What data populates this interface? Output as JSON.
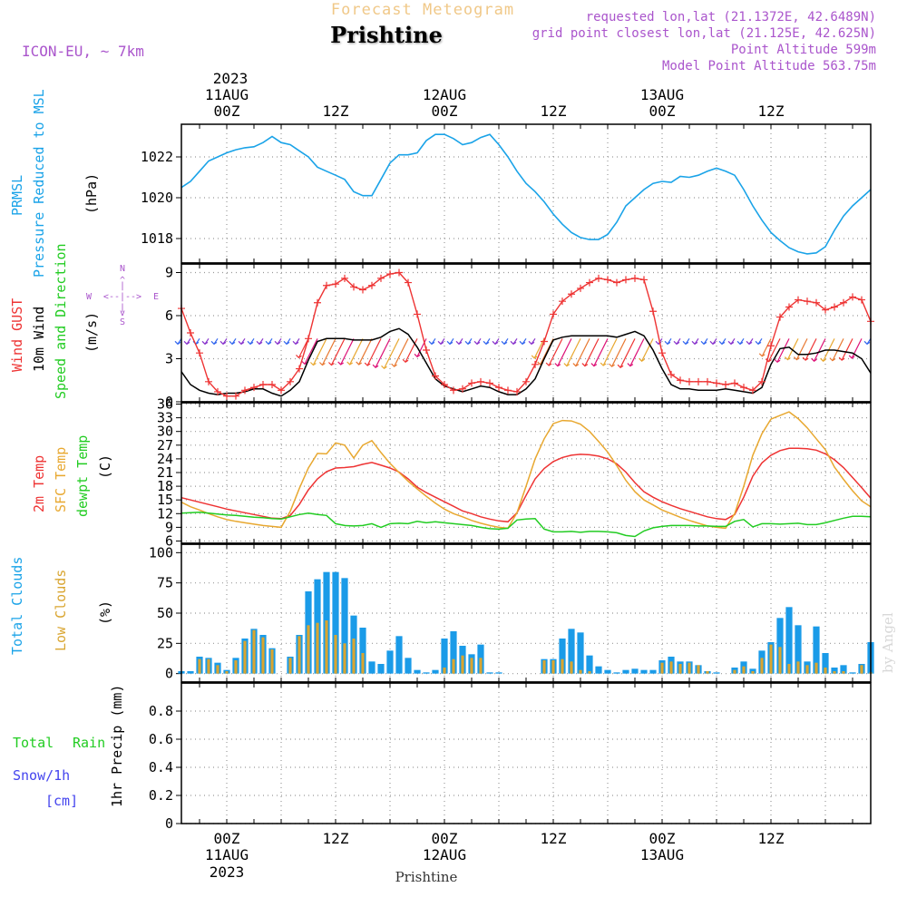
{
  "header": {
    "title": "Forecast Meteogram",
    "location": "Prishtine",
    "model": "ICON-EU, ~ 7km",
    "requested": "requested lon,lat (21.1372E, 42.6489N)",
    "grid_point": "grid point closest lon,lat (21.125E, 42.625N)",
    "point_altitude": "Point Altitude 599m",
    "model_altitude": "Model Point Altitude 563.75m",
    "watermark": "by Angel",
    "footer_location": "Prishtine"
  },
  "time_axis": {
    "top_year": "2023",
    "bottom_year": "2023",
    "tick_labels": [
      {
        "day": "11AUG",
        "time": "00Z",
        "hours": 0
      },
      {
        "day": "",
        "time": "12Z",
        "hours": 12
      },
      {
        "day": "12AUG",
        "time": "00Z",
        "hours": 24
      },
      {
        "day": "",
        "time": "12Z",
        "hours": 36
      },
      {
        "day": "13AUG",
        "time": "00Z",
        "hours": 48
      },
      {
        "day": "",
        "time": "12Z",
        "hours": 60
      }
    ],
    "hour_range": [
      -5,
      71
    ]
  },
  "panel_labels": {
    "pressure": {
      "line1": "PRMSL",
      "line2": "Pressure Reduced to MSL",
      "unit": "(hPa)"
    },
    "wind": {
      "gust": "Wind GUST",
      "wind10": "10m Wind",
      "dir": "Speed and Direction",
      "unit": "(m/s)",
      "compass_n": "N",
      "compass_s": "S",
      "compass_w": "W",
      "compass_e": "E"
    },
    "temp": {
      "t2m": "2m Temp",
      "sfc": "SFC Temp",
      "dew": "dewpt Temp",
      "unit": "(C)"
    },
    "clouds": {
      "total": "Total Clouds",
      "low": "Low Clouds",
      "unit": "(%)"
    },
    "precip": {
      "total": "Total",
      "rain": "Rain",
      "snow": "Snow/1h",
      "cm": "[cm]",
      "axis": "1hr Precip (mm)"
    }
  },
  "colors": {
    "pressure": "#1aa3e8",
    "gust": "#ee3333",
    "wind10": "#000000",
    "t2m": "#ee3333",
    "sfc": "#e8a830",
    "dew": "#22cc22",
    "total_clouds": "#1a9be8",
    "low_clouds": "#d9a530",
    "purple": "#aa55cc",
    "orange_title": "#f0c888",
    "precip_green": "#22cc22",
    "precip_blue": "#4444ee"
  },
  "chart_data": [
    {
      "type": "line",
      "name": "pressure",
      "ylabel": "(hPa)",
      "ylim": [
        1016.8,
        1023.6
      ],
      "yticks": [
        1018,
        1020,
        1022
      ],
      "x": [
        -5,
        -4,
        -3,
        -2,
        -1,
        0,
        1,
        2,
        3,
        4,
        5,
        6,
        7,
        8,
        9,
        10,
        11,
        12,
        13,
        14,
        15,
        16,
        17,
        18,
        19,
        20,
        21,
        22,
        23,
        24,
        25,
        26,
        27,
        28,
        29,
        30,
        31,
        32,
        33,
        34,
        35,
        36,
        37,
        38,
        39,
        40,
        41,
        42,
        43,
        44,
        45,
        46,
        47,
        48,
        49,
        50,
        51,
        52,
        53,
        54,
        55,
        56,
        57,
        58,
        59,
        60,
        61,
        62,
        63,
        64,
        65,
        66,
        67,
        68,
        69,
        70,
        71
      ],
      "series": [
        {
          "values": [
            1020.5,
            1020.8,
            1021.3,
            1021.8,
            1022.0,
            1022.2,
            1022.35,
            1022.45,
            1022.5,
            1022.7,
            1023.0,
            1022.7,
            1022.6,
            1022.3,
            1022.0,
            1021.5,
            1021.3,
            1021.1,
            1020.9,
            1020.3,
            1020.1,
            1020.1,
            1020.9,
            1021.7,
            1022.1,
            1022.1,
            1022.2,
            1022.8,
            1023.1,
            1023.1,
            1022.9,
            1022.6,
            1022.7,
            1022.95,
            1023.1,
            1022.6,
            1022.0,
            1021.3,
            1020.7,
            1020.3,
            1019.8,
            1019.2,
            1018.7,
            1018.3,
            1018.05,
            1017.95,
            1017.95,
            1018.2,
            1018.8,
            1019.6,
            1020.0,
            1020.4,
            1020.7,
            1020.8,
            1020.75,
            1021.05,
            1021.0,
            1021.1,
            1021.3,
            1021.45,
            1021.3,
            1021.1,
            1020.4,
            1019.6,
            1018.9,
            1018.3,
            1017.9,
            1017.55,
            1017.35,
            1017.25,
            1017.3,
            1017.6,
            1018.4,
            1019.1,
            1019.6,
            1020.0,
            1020.4
          ]
        }
      ]
    },
    {
      "type": "line",
      "name": "wind",
      "ylabel": "(m/s)",
      "ylim": [
        0,
        9.6
      ],
      "yticks": [
        0,
        3,
        6,
        9
      ],
      "x": [
        -5,
        -4,
        -3,
        -2,
        -1,
        0,
        1,
        2,
        3,
        4,
        5,
        6,
        7,
        8,
        9,
        10,
        11,
        12,
        13,
        14,
        15,
        16,
        17,
        18,
        19,
        20,
        21,
        22,
        23,
        24,
        25,
        26,
        27,
        28,
        29,
        30,
        31,
        32,
        33,
        34,
        35,
        36,
        37,
        38,
        39,
        40,
        41,
        42,
        43,
        44,
        45,
        46,
        47,
        48,
        49,
        50,
        51,
        52,
        53,
        54,
        55,
        56,
        57,
        58,
        59,
        60,
        61,
        62,
        63,
        64,
        65,
        66,
        67,
        68,
        69,
        70,
        71
      ],
      "series": [
        {
          "name": "Wind GUST",
          "values": [
            6.5,
            4.8,
            3.4,
            1.4,
            0.7,
            0.4,
            0.4,
            0.8,
            1.0,
            1.2,
            1.2,
            0.8,
            1.4,
            2.3,
            4.4,
            6.9,
            8.1,
            8.2,
            8.6,
            8.0,
            7.8,
            8.1,
            8.6,
            8.9,
            9.0,
            8.3,
            6.1,
            3.6,
            1.8,
            1.2,
            0.8,
            0.9,
            1.3,
            1.4,
            1.3,
            1.0,
            0.8,
            0.7,
            1.4,
            2.6,
            4.2,
            6.1,
            7.0,
            7.5,
            7.9,
            8.3,
            8.6,
            8.5,
            8.3,
            8.5,
            8.6,
            8.5,
            6.3,
            3.4,
            1.9,
            1.5,
            1.4,
            1.4,
            1.4,
            1.3,
            1.2,
            1.3,
            1.0,
            0.8,
            1.4,
            3.9,
            5.9,
            6.6,
            7.1,
            7.0,
            6.9,
            6.4,
            6.6,
            6.9,
            7.3,
            7.1,
            5.6
          ]
        },
        {
          "name": "10m Wind",
          "values": [
            2.1,
            1.2,
            0.8,
            0.6,
            0.5,
            0.6,
            0.6,
            0.7,
            0.9,
            0.9,
            0.6,
            0.4,
            0.8,
            1.4,
            2.9,
            4.2,
            4.4,
            4.4,
            4.4,
            4.3,
            4.3,
            4.3,
            4.5,
            4.9,
            5.1,
            4.7,
            3.8,
            2.7,
            1.6,
            1.1,
            0.9,
            0.7,
            0.9,
            1.1,
            1.0,
            0.7,
            0.5,
            0.5,
            0.9,
            1.6,
            3.0,
            4.3,
            4.5,
            4.6,
            4.6,
            4.6,
            4.6,
            4.6,
            4.5,
            4.7,
            4.9,
            4.6,
            3.6,
            2.3,
            1.2,
            0.9,
            0.9,
            0.8,
            0.8,
            0.8,
            0.9,
            0.8,
            0.7,
            0.6,
            1.0,
            2.6,
            3.7,
            3.8,
            3.3,
            3.3,
            3.4,
            3.6,
            3.6,
            3.5,
            3.4,
            3.0,
            2.0
          ]
        }
      ]
    },
    {
      "type": "line",
      "name": "temperature",
      "ylabel": "(C)",
      "ylim": [
        5.5,
        36.3
      ],
      "yticks": [
        6,
        9,
        12,
        15,
        18,
        21,
        24,
        27,
        30,
        33,
        36
      ],
      "x": [
        -5,
        -4,
        -3,
        -2,
        -1,
        0,
        1,
        2,
        3,
        4,
        5,
        6,
        7,
        8,
        9,
        10,
        11,
        12,
        13,
        14,
        15,
        16,
        17,
        18,
        19,
        20,
        21,
        22,
        23,
        24,
        25,
        26,
        27,
        28,
        29,
        30,
        31,
        32,
        33,
        34,
        35,
        36,
        37,
        38,
        39,
        40,
        41,
        42,
        43,
        44,
        45,
        46,
        47,
        48,
        49,
        50,
        51,
        52,
        53,
        54,
        55,
        56,
        57,
        58,
        59,
        60,
        61,
        62,
        63,
        64,
        65,
        66,
        67,
        68,
        69,
        70,
        71
      ],
      "series": [
        {
          "name": "2m Temp",
          "values": [
            15.5,
            15,
            14.5,
            14,
            13.5,
            13,
            12.6,
            12.2,
            11.8,
            11.4,
            11.0,
            10.9,
            11.6,
            14.0,
            17.2,
            19.6,
            21.2,
            22.0,
            22.1,
            22.3,
            22.8,
            23.2,
            22.6,
            22.0,
            21.1,
            19.6,
            17.8,
            16.6,
            15.6,
            14.6,
            13.6,
            12.6,
            12.0,
            11.3,
            10.8,
            10.4,
            10.2,
            12.2,
            16.0,
            19.6,
            21.9,
            23.4,
            24.3,
            24.8,
            25.0,
            24.9,
            24.6,
            24.0,
            22.9,
            21.1,
            18.8,
            16.8,
            15.6,
            14.6,
            13.8,
            13.1,
            12.5,
            11.9,
            11.3,
            10.9,
            10.7,
            11.8,
            15.6,
            20.2,
            23.1,
            24.8,
            25.8,
            26.3,
            26.3,
            26.2,
            25.9,
            25.1,
            23.8,
            22.1,
            19.9,
            17.7,
            15.4
          ]
        },
        {
          "name": "SFC Temp",
          "values": [
            14.5,
            13.5,
            12.8,
            12.0,
            11.3,
            10.7,
            10.3,
            10.0,
            9.7,
            9.4,
            9.2,
            9.0,
            12.5,
            17.5,
            22.0,
            25.2,
            25.1,
            27.5,
            27.0,
            24.2,
            27.0,
            28.0,
            25.4,
            23.0,
            21.0,
            19.1,
            17.4,
            15.8,
            14.3,
            13.0,
            12.0,
            11.3,
            10.5,
            9.9,
            9.4,
            9.0,
            8.8,
            12.2,
            18.0,
            24.0,
            28.4,
            31.7,
            32.4,
            32.3,
            31.6,
            30.0,
            27.8,
            25.5,
            22.5,
            19.3,
            16.8,
            15.0,
            13.9,
            12.8,
            12.0,
            11.2,
            10.5,
            9.9,
            9.3,
            9.0,
            8.8,
            12.0,
            18.0,
            24.8,
            29.5,
            32.7,
            33.5,
            34.3,
            32.8,
            30.8,
            28.4,
            26.0,
            22.2,
            19.5,
            17.0,
            14.8,
            13.5
          ]
        },
        {
          "name": "dewpt Temp",
          "values": [
            12.1,
            12.2,
            12.3,
            12.1,
            11.9,
            11.7,
            11.6,
            11.4,
            11.2,
            11.1,
            10.9,
            10.8,
            11.3,
            11.8,
            12.1,
            11.8,
            11.6,
            9.8,
            9.4,
            9.3,
            9.4,
            9.8,
            9.0,
            9.8,
            9.9,
            9.8,
            10.3,
            10.0,
            10.2,
            10.0,
            9.8,
            9.6,
            9.4,
            9.0,
            8.7,
            8.6,
            8.8,
            10.6,
            10.8,
            10.9,
            8.6,
            8.0,
            8.0,
            8.1,
            7.9,
            8.1,
            8.1,
            8.0,
            7.8,
            7.2,
            7.0,
            8.2,
            8.9,
            9.2,
            9.4,
            9.4,
            9.4,
            9.3,
            9.3,
            9.2,
            9.2,
            10.3,
            10.7,
            9.1,
            9.8,
            9.8,
            9.7,
            9.8,
            9.9,
            9.6,
            9.6,
            10.0,
            10.5,
            11.0,
            11.4,
            11.4,
            11.3
          ]
        }
      ]
    },
    {
      "type": "bar",
      "name": "clouds",
      "ylabel": "(%)",
      "ylim": [
        -7,
        107
      ],
      "yticks": [
        0,
        25,
        50,
        75,
        100
      ],
      "x": [
        -5,
        -4,
        -3,
        -2,
        -1,
        0,
        1,
        2,
        3,
        4,
        5,
        6,
        7,
        8,
        9,
        10,
        11,
        12,
        13,
        14,
        15,
        16,
        17,
        18,
        19,
        20,
        21,
        22,
        23,
        24,
        25,
        26,
        27,
        28,
        29,
        30,
        31,
        32,
        33,
        34,
        35,
        36,
        37,
        38,
        39,
        40,
        41,
        42,
        43,
        44,
        45,
        46,
        47,
        48,
        49,
        50,
        51,
        52,
        53,
        54,
        55,
        56,
        57,
        58,
        59,
        60,
        61,
        62,
        63,
        64,
        65,
        66,
        67,
        68,
        69,
        70,
        71
      ],
      "series": [
        {
          "name": "Total Clouds",
          "values": [
            2,
            2,
            14,
            13,
            9,
            3,
            13,
            29,
            37,
            32,
            21,
            0,
            14,
            32,
            68,
            78,
            84,
            84,
            79,
            48,
            38,
            10,
            8,
            19,
            31,
            13,
            3,
            1,
            3,
            29,
            35,
            23,
            16,
            24,
            1,
            1,
            0,
            0,
            0,
            0,
            12,
            12,
            29,
            37,
            34,
            15,
            6,
            3,
            1,
            3,
            4,
            3,
            3,
            11,
            14,
            10,
            10,
            7,
            2,
            1,
            0,
            5,
            10,
            4,
            19,
            26,
            46,
            55,
            40,
            10,
            39,
            17,
            5,
            7,
            1,
            8,
            26
          ]
        },
        {
          "name": "Low Clouds",
          "values": [
            0,
            0,
            12,
            12,
            7,
            2,
            11,
            27,
            36,
            30,
            20,
            0,
            13,
            31,
            40,
            42,
            44,
            32,
            25,
            29,
            17,
            0,
            0,
            0,
            0,
            0,
            0,
            0,
            0,
            5,
            12,
            15,
            13,
            13,
            0,
            0,
            0,
            0,
            0,
            0,
            11,
            11,
            12,
            10,
            3,
            2,
            0,
            0,
            0,
            0,
            0,
            0,
            0,
            9,
            10,
            8,
            9,
            7,
            2,
            0,
            0,
            3,
            6,
            2,
            13,
            24,
            22,
            8,
            10,
            7,
            9,
            5,
            2,
            2,
            0,
            7,
            1
          ]
        }
      ]
    },
    {
      "type": "bar",
      "name": "precipitation",
      "ylabel": "1hr Precip (mm)",
      "ylim": [
        0,
        1
      ],
      "yticks": [
        0,
        0.2,
        0.4,
        0.6,
        0.8
      ],
      "series": [
        {
          "name": "Total Rain",
          "values": []
        }
      ]
    }
  ]
}
